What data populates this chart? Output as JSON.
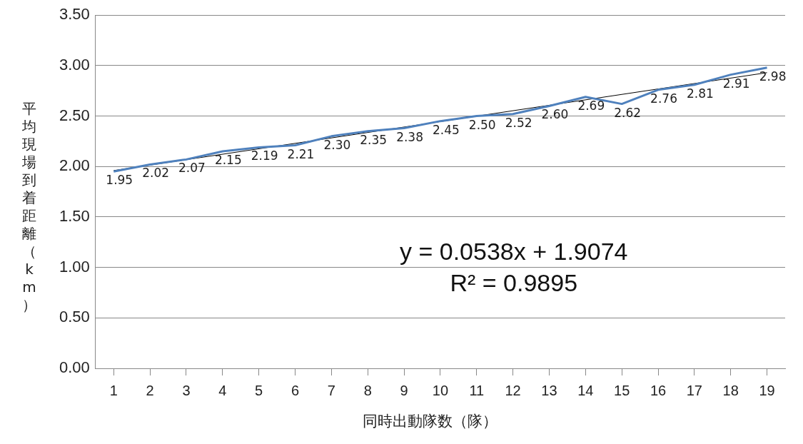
{
  "chart_data": {
    "type": "line",
    "xlabel": "同時出動隊数（隊）",
    "ylabel": "平均現場到着距離（km）",
    "x": [
      1,
      2,
      3,
      4,
      5,
      6,
      7,
      8,
      9,
      10,
      11,
      12,
      13,
      14,
      15,
      16,
      17,
      18,
      19
    ],
    "xlim": [
      0.5,
      19.5
    ],
    "xticks": [
      1,
      2,
      3,
      4,
      5,
      6,
      7,
      8,
      9,
      10,
      11,
      12,
      13,
      14,
      15,
      16,
      17,
      18,
      19
    ],
    "ylim": [
      0,
      3.5
    ],
    "yticks": [
      {
        "value": 0,
        "label": "0.00"
      },
      {
        "value": 0.5,
        "label": "0.50"
      },
      {
        "value": 1,
        "label": "1.00"
      },
      {
        "value": 1.5,
        "label": "1.50"
      },
      {
        "value": 2,
        "label": "2.00"
      },
      {
        "value": 2.5,
        "label": "2.50"
      },
      {
        "value": 3,
        "label": "3.00"
      },
      {
        "value": 3.5,
        "label": "3.50"
      }
    ],
    "series": [
      {
        "type": "line",
        "color": "#4f81bd",
        "values": [
          1.95,
          2.02,
          2.07,
          2.15,
          2.19,
          2.21,
          2.3,
          2.35,
          2.38,
          2.45,
          2.5,
          2.52,
          2.6,
          2.69,
          2.62,
          2.76,
          2.81,
          2.91,
          2.98
        ],
        "value_labels": [
          "1.95",
          "2.02",
          "2.07",
          "2.15",
          "2.19",
          "2.21",
          "2.30",
          "2.35",
          "2.38",
          "2.45",
          "2.50",
          "2.52",
          "2.60",
          "2.69",
          "2.62",
          "2.76",
          "2.81",
          "2.91",
          "2.98"
        ]
      },
      {
        "type": "line",
        "color": "#000000",
        "x": [
          1,
          19
        ],
        "values": [
          1.96,
          2.93
        ]
      }
    ],
    "annotations": [
      "y = 0.0538x + 1.9074",
      "R² = 0.9895"
    ],
    "grid": "y",
    "legend": false,
    "marker": "none",
    "line_style": "solid"
  }
}
